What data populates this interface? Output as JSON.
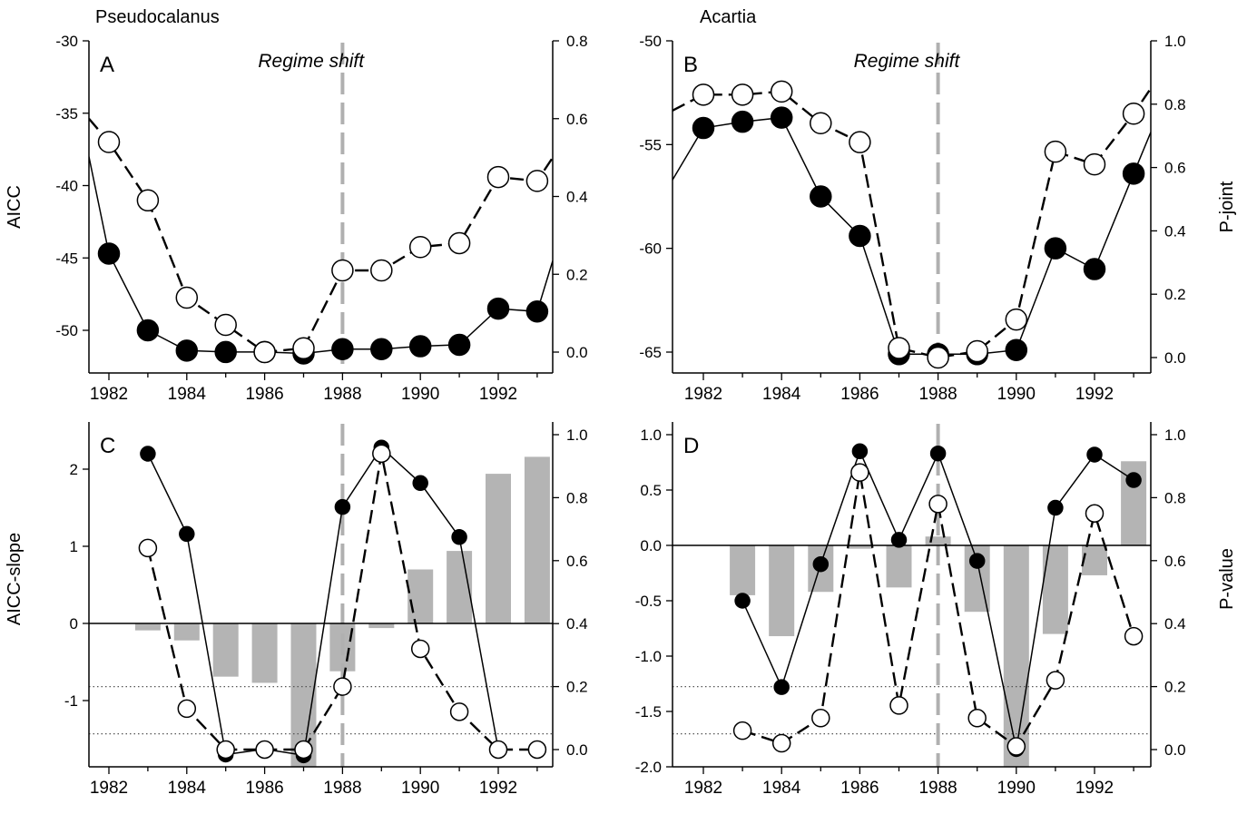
{
  "chart_data": [
    {
      "panel": "A",
      "type": "line",
      "title": "Pseudocalanus",
      "panel_label": "A",
      "annotation": "Regime shift",
      "regime_shift_year": 1988,
      "ylabel": "AICC",
      "y2label": "",
      "xlim": [
        1981.6,
        1993.6
      ],
      "ylim": [
        -52.8,
        -30
      ],
      "y2lim": [
        -0.05,
        0.8
      ],
      "xticks": [
        1982,
        1984,
        1986,
        1988,
        1990,
        1992
      ],
      "yticks": [
        -30,
        -35,
        -40,
        -45,
        -50
      ],
      "y2ticks": [
        "0.0",
        "0.2",
        "0.4",
        "0.6",
        "0.8"
      ],
      "series": [
        {
          "axis": "left",
          "marker": "filled",
          "line": "solid",
          "x": [
            1982,
            1983,
            1984,
            1985,
            1986,
            1987,
            1988,
            1989,
            1990,
            1991,
            1992,
            1993
          ],
          "values": [
            -44.7,
            -50.0,
            -51.4,
            -51.5,
            -51.5,
            -51.6,
            -51.3,
            -51.3,
            -51.1,
            -51.0,
            -48.5,
            -48.7
          ],
          "edge_start": -38.0,
          "edge_end": -45.2
        },
        {
          "axis": "right",
          "marker": "open",
          "line": "dashed",
          "x": [
            1982,
            1983,
            1984,
            1985,
            1986,
            1987,
            1988,
            1989,
            1990,
            1991,
            1992,
            1993
          ],
          "values": [
            0.54,
            0.39,
            0.14,
            0.07,
            0.0,
            0.01,
            0.21,
            0.21,
            0.27,
            0.28,
            0.45,
            0.44
          ],
          "edge_start": 0.6,
          "edge_end": 0.5
        }
      ]
    },
    {
      "panel": "B",
      "type": "line",
      "title": "Acartia",
      "panel_label": "B",
      "annotation": "Regime shift",
      "regime_shift_year": 1988,
      "ylabel": "",
      "y2label": "P-joint",
      "xlim": [
        1981.6,
        1993.6
      ],
      "ylim": [
        -65.8,
        -50
      ],
      "y2lim": [
        -0.05,
        1.0
      ],
      "xticks": [
        1982,
        1984,
        1986,
        1988,
        1990,
        1992
      ],
      "yticks": [
        -50,
        -55,
        -60,
        -65
      ],
      "y2ticks": [
        "0.0",
        "0.2",
        "0.4",
        "0.6",
        "0.8",
        "1.0"
      ],
      "series": [
        {
          "axis": "left",
          "marker": "filled",
          "line": "solid",
          "x": [
            1982,
            1983,
            1984,
            1985,
            1986,
            1987,
            1988,
            1989,
            1990,
            1991,
            1992,
            1993
          ],
          "values": [
            -54.2,
            -53.9,
            -53.7,
            -57.5,
            -59.4,
            -65.1,
            -65.1,
            -65.1,
            -64.9,
            -60.0,
            -61.0,
            -56.4
          ],
          "edge_start": -56.7,
          "edge_end": -54.4
        },
        {
          "axis": "right",
          "marker": "open",
          "line": "dashed",
          "x": [
            1982,
            1983,
            1984,
            1985,
            1986,
            1987,
            1988,
            1989,
            1990,
            1991,
            1992,
            1993
          ],
          "values": [
            0.83,
            0.83,
            0.84,
            0.74,
            0.68,
            0.03,
            0.0,
            0.02,
            0.12,
            0.65,
            0.61,
            0.77
          ],
          "edge_start": 0.78,
          "edge_end": 0.85
        }
      ]
    },
    {
      "panel": "C",
      "type": "bar",
      "title": "",
      "panel_label": "C",
      "regime_shift_year": 1988,
      "ylabel": "AICC-slope",
      "y2label": "",
      "xlim": [
        1981.6,
        1993.6
      ],
      "ylim": [
        -2.08,
        2.5
      ],
      "y2lim": [
        -0.05,
        1.0
      ],
      "xticks": [
        1982,
        1984,
        1986,
        1988,
        1990,
        1992
      ],
      "yticks": [
        "2",
        "1",
        "0",
        "-1"
      ],
      "y2ticks": [
        "0.0",
        "0.2",
        "0.4",
        "0.6",
        "0.8",
        "1.0"
      ],
      "zero_line": 0,
      "reference_levels_right_axis": [
        0.05,
        0.2
      ],
      "bars": {
        "axis": "left",
        "x": [
          1983,
          1984,
          1985,
          1986,
          1987,
          1988,
          1989,
          1990,
          1991,
          1992,
          1993
        ],
        "values": [
          -0.09,
          -0.22,
          -0.69,
          -0.77,
          -2.08,
          -0.62,
          -0.06,
          0.7,
          0.94,
          1.94,
          2.16
        ]
      },
      "series": [
        {
          "axis": "left",
          "marker": "filled",
          "line": "solid",
          "x": [
            1983,
            1984,
            1985,
            1986,
            1987,
            1988,
            1989,
            1990,
            1991,
            1992
          ],
          "values": [
            2.2,
            1.16,
            -1.7,
            -1.63,
            -1.71,
            1.51,
            2.28,
            1.82,
            1.12,
            -1.63
          ]
        },
        {
          "axis": "right",
          "marker": "open",
          "line": "dashed",
          "x": [
            1983,
            1984,
            1985,
            1986,
            1987,
            1988,
            1989,
            1990,
            1991,
            1992,
            1993
          ],
          "values": [
            0.64,
            0.13,
            0.0,
            0.0,
            0.0,
            0.2,
            0.94,
            0.32,
            0.12,
            0.0,
            0.0
          ]
        }
      ]
    },
    {
      "panel": "D",
      "type": "bar",
      "title": "",
      "panel_label": "D",
      "regime_shift_year": 1988,
      "ylabel": "",
      "y2label": "P-value",
      "xlim": [
        1981.6,
        1993.6
      ],
      "ylim": [
        -2.0,
        1.0
      ],
      "y2lim": [
        -0.05,
        1.0
      ],
      "xticks": [
        1982,
        1984,
        1986,
        1988,
        1990,
        1992
      ],
      "yticks": [
        "1.0",
        "0.5",
        "0.0",
        "-0.5",
        "-1.0",
        "-1.5",
        "-2.0"
      ],
      "y2ticks": [
        "0.0",
        "0.2",
        "0.4",
        "0.6",
        "0.8",
        "1.0"
      ],
      "zero_line": 0,
      "reference_levels_right_axis": [
        0.05,
        0.2
      ],
      "bars": {
        "axis": "left",
        "x": [
          1983,
          1984,
          1985,
          1986,
          1987,
          1988,
          1989,
          1990,
          1991,
          1992,
          1993
        ],
        "values": [
          -0.45,
          -0.82,
          -0.42,
          -0.03,
          -0.38,
          0.08,
          -0.6,
          -2.0,
          -0.8,
          -0.27,
          0.76
        ]
      },
      "series": [
        {
          "axis": "left",
          "marker": "filled",
          "line": "solid",
          "x": [
            1983,
            1984,
            1985,
            1986,
            1987,
            1988,
            1989,
            1990,
            1991,
            1992,
            1993
          ],
          "values": [
            -0.5,
            -1.28,
            -0.17,
            0.85,
            0.05,
            0.83,
            -0.14,
            -1.84,
            0.34,
            0.82,
            0.59
          ]
        },
        {
          "axis": "right",
          "marker": "open",
          "line": "dashed",
          "x": [
            1983,
            1984,
            1985,
            1986,
            1987,
            1988,
            1989,
            1990,
            1991,
            1992,
            1993
          ],
          "values": [
            0.06,
            0.02,
            0.1,
            0.88,
            0.14,
            0.78,
            0.1,
            0.01,
            0.22,
            0.75,
            0.36
          ]
        }
      ]
    }
  ],
  "colors": {
    "axis": "#000000",
    "filled_marker": "#000000",
    "open_marker_fill": "#ffffff",
    "bars": "#b4b4b4",
    "regime_line": "#b0b0b0",
    "reference_dots": "#555555"
  }
}
